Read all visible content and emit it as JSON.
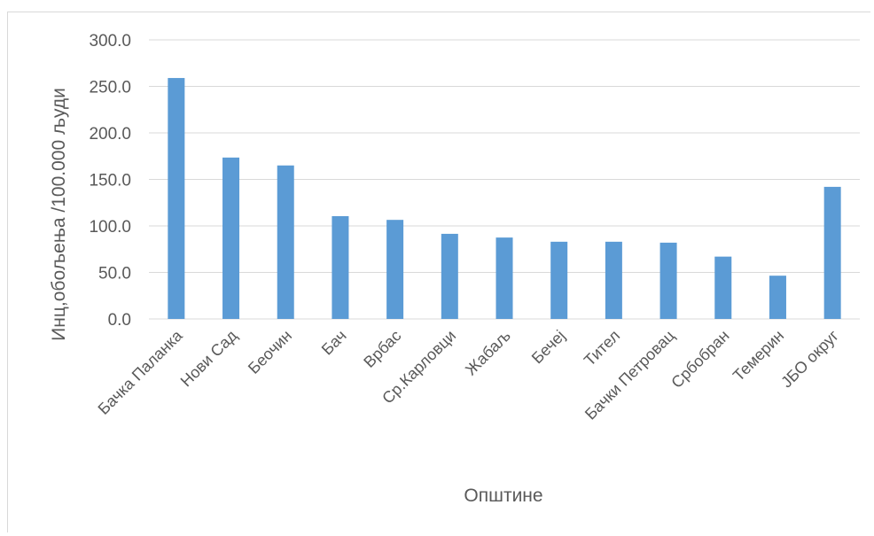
{
  "chart_data": {
    "type": "bar",
    "title": "",
    "xlabel": "Општине",
    "ylabel": "Инц,обољења /100.000 људи",
    "ylim": [
      0,
      300
    ],
    "y_ticks": [
      "0.0",
      "50.0",
      "100.0",
      "150.0",
      "200.0",
      "250.0",
      "300.0"
    ],
    "grid": true,
    "legend": "none",
    "bar_color": "#5b9bd5",
    "categories": [
      "Бачка Паланка",
      "Нови Сад",
      "Беочин",
      "Бач",
      "Врбас",
      "Ср.Карловци",
      "Жабаљ",
      "Бечеј",
      "Тител",
      "Бачки Петровац",
      "Србобран",
      "Темерин",
      "ЈБО округ"
    ],
    "values": [
      259.0,
      173.5,
      165.0,
      110.5,
      106.5,
      91.5,
      87.5,
      83.0,
      83.0,
      82.0,
      67.0,
      46.5,
      142.0
    ]
  }
}
